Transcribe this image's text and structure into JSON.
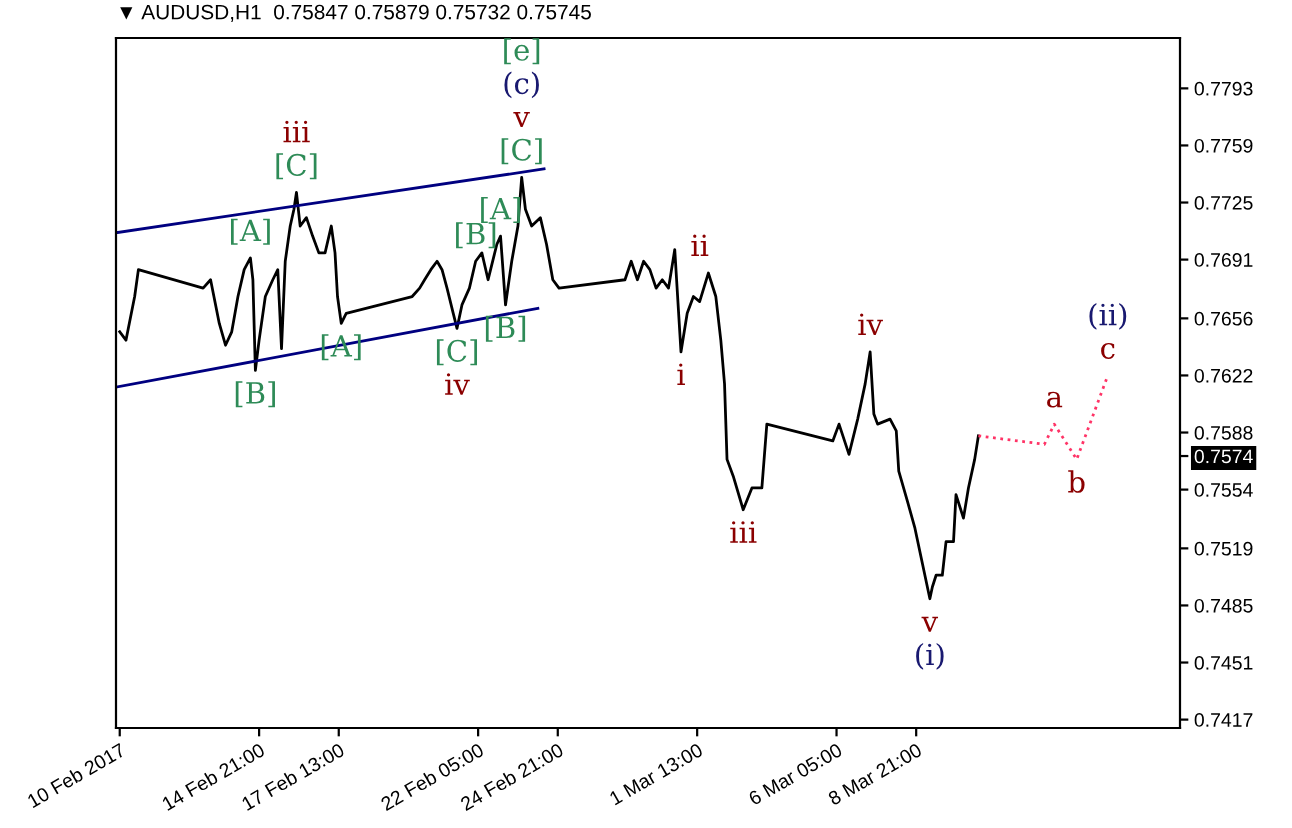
{
  "chart_data": {
    "type": "line",
    "title": "▼ AUDUSD,H1  0.75847 0.75879 0.75732 0.75745",
    "xlim": [
      "2017-02-10T02:00",
      "2017-03-17T17:00"
    ],
    "ylim": [
      0.7412,
      0.7823
    ],
    "xticks": [
      {
        "value": "2017-02-10T05:00",
        "label": "10 Feb 2017"
      },
      {
        "value": "2017-02-14T21:00",
        "label": "14 Feb 21:00"
      },
      {
        "value": "2017-02-17T13:00",
        "label": "17 Feb 13:00"
      },
      {
        "value": "2017-02-22T05:00",
        "label": "22 Feb 05:00"
      },
      {
        "value": "2017-02-24T21:00",
        "label": "24 Feb 21:00"
      },
      {
        "value": "2017-03-01T13:00",
        "label": "1 Mar 13:00"
      },
      {
        "value": "2017-03-06T05:00",
        "label": "6 Mar 05:00"
      },
      {
        "value": "2017-03-08T21:00",
        "label": "8 Mar 21:00"
      }
    ],
    "yticks": [
      0.7793,
      0.7759,
      0.7725,
      0.7691,
      0.7656,
      0.7622,
      0.7588,
      0.7554,
      0.7519,
      0.7485,
      0.7451,
      0.7417,
      {
        "value": 0.7574,
        "label": "0.7574"
      }
    ],
    "grid": false,
    "legend": false,
    "marker": "none",
    "series": [
      {
        "color": "#000000",
        "line_style": "solid",
        "x": [
          "2017-02-10T05:00",
          "2017-02-10T10:00",
          "2017-02-10T17:00",
          "2017-02-10T20:00",
          "2017-02-13T00:00",
          "2017-02-13T06:00",
          "2017-02-13T13:00",
          "2017-02-13T18:00",
          "2017-02-13T23:00",
          "2017-02-14T04:00",
          "2017-02-14T09:00",
          "2017-02-14T14:00",
          "2017-02-14T16:00",
          "2017-02-14T18:00",
          "2017-02-14T21:00",
          "2017-02-15T02:00",
          "2017-02-15T08:00",
          "2017-02-15T12:00",
          "2017-02-15T15:00",
          "2017-02-15T18:00",
          "2017-02-15T22:00",
          "2017-02-16T01:00",
          "2017-02-16T03:00",
          "2017-02-16T06:00",
          "2017-02-16T11:00",
          "2017-02-16T16:00",
          "2017-02-16T21:00",
          "2017-02-17T02:00",
          "2017-02-17T07:00",
          "2017-02-17T10:00",
          "2017-02-17T12:00",
          "2017-02-17T15:00",
          "2017-02-17T19:00",
          "2017-02-20T00:00",
          "2017-02-20T06:00",
          "2017-02-20T10:00",
          "2017-02-20T15:00",
          "2017-02-20T20:00",
          "2017-02-21T00:00",
          "2017-02-21T04:00",
          "2017-02-21T09:00",
          "2017-02-21T12:00",
          "2017-02-21T16:00",
          "2017-02-21T22:00",
          "2017-02-22T03:00",
          "2017-02-22T08:00",
          "2017-02-22T13:00",
          "2017-02-22T15:00",
          "2017-02-22T20:00",
          "2017-02-22T23:00",
          "2017-02-23T03:00",
          "2017-02-23T08:00",
          "2017-02-23T13:00",
          "2017-02-23T16:00",
          "2017-02-23T19:00",
          "2017-02-24T00:00",
          "2017-02-24T07:00",
          "2017-02-24T12:00",
          "2017-02-24T17:00",
          "2017-02-24T22:00",
          "2017-02-27T03:00",
          "2017-02-27T08:00",
          "2017-02-27T13:00",
          "2017-02-27T18:00",
          "2017-02-27T23:00",
          "2017-02-28T04:00",
          "2017-02-28T09:00",
          "2017-02-28T14:00",
          "2017-02-28T19:00",
          "2017-03-01T00:00",
          "2017-03-01T05:00",
          "2017-03-01T10:00",
          "2017-03-01T15:00",
          "2017-03-01T22:00",
          "2017-03-02T04:00",
          "2017-03-02T08:00",
          "2017-03-02T11:00",
          "2017-03-02T13:00",
          "2017-03-02T18:00",
          "2017-03-03T02:00",
          "2017-03-03T09:00",
          "2017-03-03T17:00",
          "2017-03-03T21:00",
          "2017-03-06T02:00",
          "2017-03-06T07:00",
          "2017-03-06T15:00",
          "2017-03-06T22:00",
          "2017-03-07T04:00",
          "2017-03-07T08:00",
          "2017-03-07T11:00",
          "2017-03-07T14:00",
          "2017-03-08T00:00",
          "2017-03-08T05:00",
          "2017-03-08T07:00",
          "2017-03-08T14:00",
          "2017-03-08T20:00",
          "2017-03-09T02:00",
          "2017-03-09T08:00",
          "2017-03-09T10:00",
          "2017-03-09T13:00",
          "2017-03-09T18:00",
          "2017-03-09T21:00",
          "2017-03-10T03:00",
          "2017-03-10T05:00",
          "2017-03-10T11:00",
          "2017-03-10T15:00",
          "2017-03-10T20:00",
          "2017-03-10T23:00"
        ],
        "values": [
          0.7648,
          0.7643,
          0.7669,
          0.7685,
          0.7674,
          0.7679,
          0.7653,
          0.764,
          0.7648,
          0.7669,
          0.7685,
          0.7692,
          0.7679,
          0.7625,
          0.7643,
          0.7669,
          0.7679,
          0.7685,
          0.7638,
          0.769,
          0.7711,
          0.7721,
          0.7731,
          0.7711,
          0.7716,
          0.7705,
          0.7695,
          0.7695,
          0.7711,
          0.7695,
          0.7669,
          0.7653,
          0.7659,
          0.7669,
          0.7674,
          0.7679,
          0.7685,
          0.769,
          0.7685,
          0.7674,
          0.7659,
          0.765,
          0.7664,
          0.7674,
          0.769,
          0.7695,
          0.7679,
          0.7685,
          0.77,
          0.7705,
          0.7664,
          0.769,
          0.7711,
          0.774,
          0.7721,
          0.7711,
          0.7716,
          0.77,
          0.7679,
          0.7674,
          0.7679,
          0.769,
          0.7679,
          0.769,
          0.7685,
          0.7674,
          0.7679,
          0.7674,
          0.7697,
          0.7636,
          0.7659,
          0.7669,
          0.7666,
          0.7683,
          0.7669,
          0.7643,
          0.7617,
          0.7572,
          0.7562,
          0.7542,
          0.7555,
          0.7555,
          0.7593,
          0.7583,
          0.7593,
          0.7575,
          0.7596,
          0.7617,
          0.7636,
          0.7599,
          0.7593,
          0.7596,
          0.7589,
          0.7565,
          0.7547,
          0.7531,
          0.751,
          0.7489,
          0.7496,
          0.7503,
          0.7503,
          0.7523,
          0.7523,
          0.7551,
          0.7537,
          0.7555,
          0.7572,
          0.7586
        ]
      },
      {
        "color": "#000080",
        "line_style": "solid",
        "x": [
          "2017-02-10T02:00",
          "2017-02-24T10:00"
        ],
        "values": [
          0.7707,
          0.7745
        ]
      },
      {
        "color": "#000080",
        "line_style": "solid",
        "x": [
          "2017-02-10T02:00",
          "2017-02-24T05:00"
        ],
        "values": [
          0.7615,
          0.7662
        ]
      },
      {
        "color": "#ff3366",
        "line_style": "dotted",
        "x": [
          "2017-03-10T23:00",
          "2017-03-13T04:00",
          "2017-03-13T12:00",
          "2017-03-14T06:00",
          "2017-03-15T07:00"
        ],
        "values": [
          0.7586,
          0.7581,
          0.7593,
          0.7572,
          0.7622
        ]
      }
    ],
    "annotations": [
      {
        "text": "[C]",
        "x": "2017-02-23T16:00",
        "y": 0.774
      },
      {
        "text": "v",
        "x": "2017-02-23T16:00",
        "y": 0.774
      },
      "(c)",
      "[e]",
      {
        "text": "[C]",
        "x": "2017-02-16T03:00",
        "y": 0.7731
      },
      {
        "text": "iii",
        "x": "2017-02-16T03:00",
        "y": 0.7731
      },
      {
        "text": "[A]",
        "x": "2017-02-14T14:00",
        "y": 0.7692
      },
      {
        "text": "[B]",
        "x": "2017-02-14T18:00",
        "y": 0.7625
      },
      {
        "text": "[A]",
        "x": "2017-02-17T15:00",
        "y": 0.7653
      },
      {
        "text": "[B]",
        "x": "2017-02-22T03:00",
        "y": 0.769
      },
      {
        "text": "[C]",
        "x": "2017-02-21T12:00",
        "y": 0.765
      },
      {
        "text": "iv",
        "x": "2017-02-21T12:00",
        "y": 0.765
      },
      {
        "text": "[A]",
        "x": "2017-02-22T23:00",
        "y": 0.7705
      },
      {
        "text": "[B]",
        "x": "2017-02-23T03:00",
        "y": 0.7664
      },
      {
        "text": "i",
        "x": "2017-03-01T00:00",
        "y": 0.7636
      },
      {
        "text": "ii",
        "x": "2017-03-01T15:00",
        "y": 0.7683
      },
      {
        "text": "iii",
        "x": "2017-03-03T02:00",
        "y": 0.7542
      },
      {
        "text": "iv",
        "x": "2017-03-07T08:00",
        "y": 0.7636
      },
      {
        "text": "v",
        "x": "2017-03-09T08:00",
        "y": 0.7489
      },
      {
        "text": "(i)",
        "x": "2017-03-09T08:00",
        "y": 0.7489
      },
      {
        "text": "a",
        "x": "2017-03-13T12:00",
        "y": 0.7593
      },
      {
        "text": "b",
        "x": "2017-03-14T06:00",
        "y": 0.7572
      },
      {
        "text": "c",
        "x": "2017-03-15T07:00",
        "y": 0.7622
      },
      {
        "text": "(ii)",
        "x": "2017-03-15T07:00",
        "y": 0.7622
      }
    ]
  }
}
